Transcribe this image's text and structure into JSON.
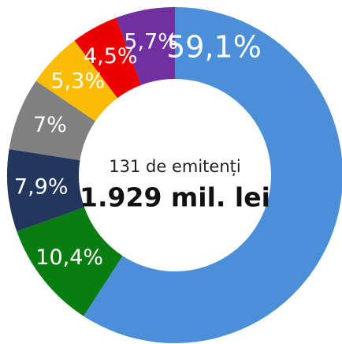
{
  "chart_data": {
    "type": "donut",
    "categories": [
      null,
      null,
      null,
      null,
      null,
      null,
      null
    ],
    "values": [
      59.1,
      10.4,
      7.9,
      7,
      5.3,
      4.5,
      5.7
    ],
    "value_labels": [
      "59,1%",
      "10,4%",
      "7,9%",
      "7%",
      "5,3%",
      "4,5%",
      "5,7%"
    ],
    "colors": [
      "#4a8fd8",
      "#0a7d12",
      "#22365e",
      "#808080",
      "#fbbc05",
      "#ee0000",
      "#7030a0"
    ],
    "center_text": "131 de emitenți",
    "center_value": "1.929 mil. lei"
  }
}
